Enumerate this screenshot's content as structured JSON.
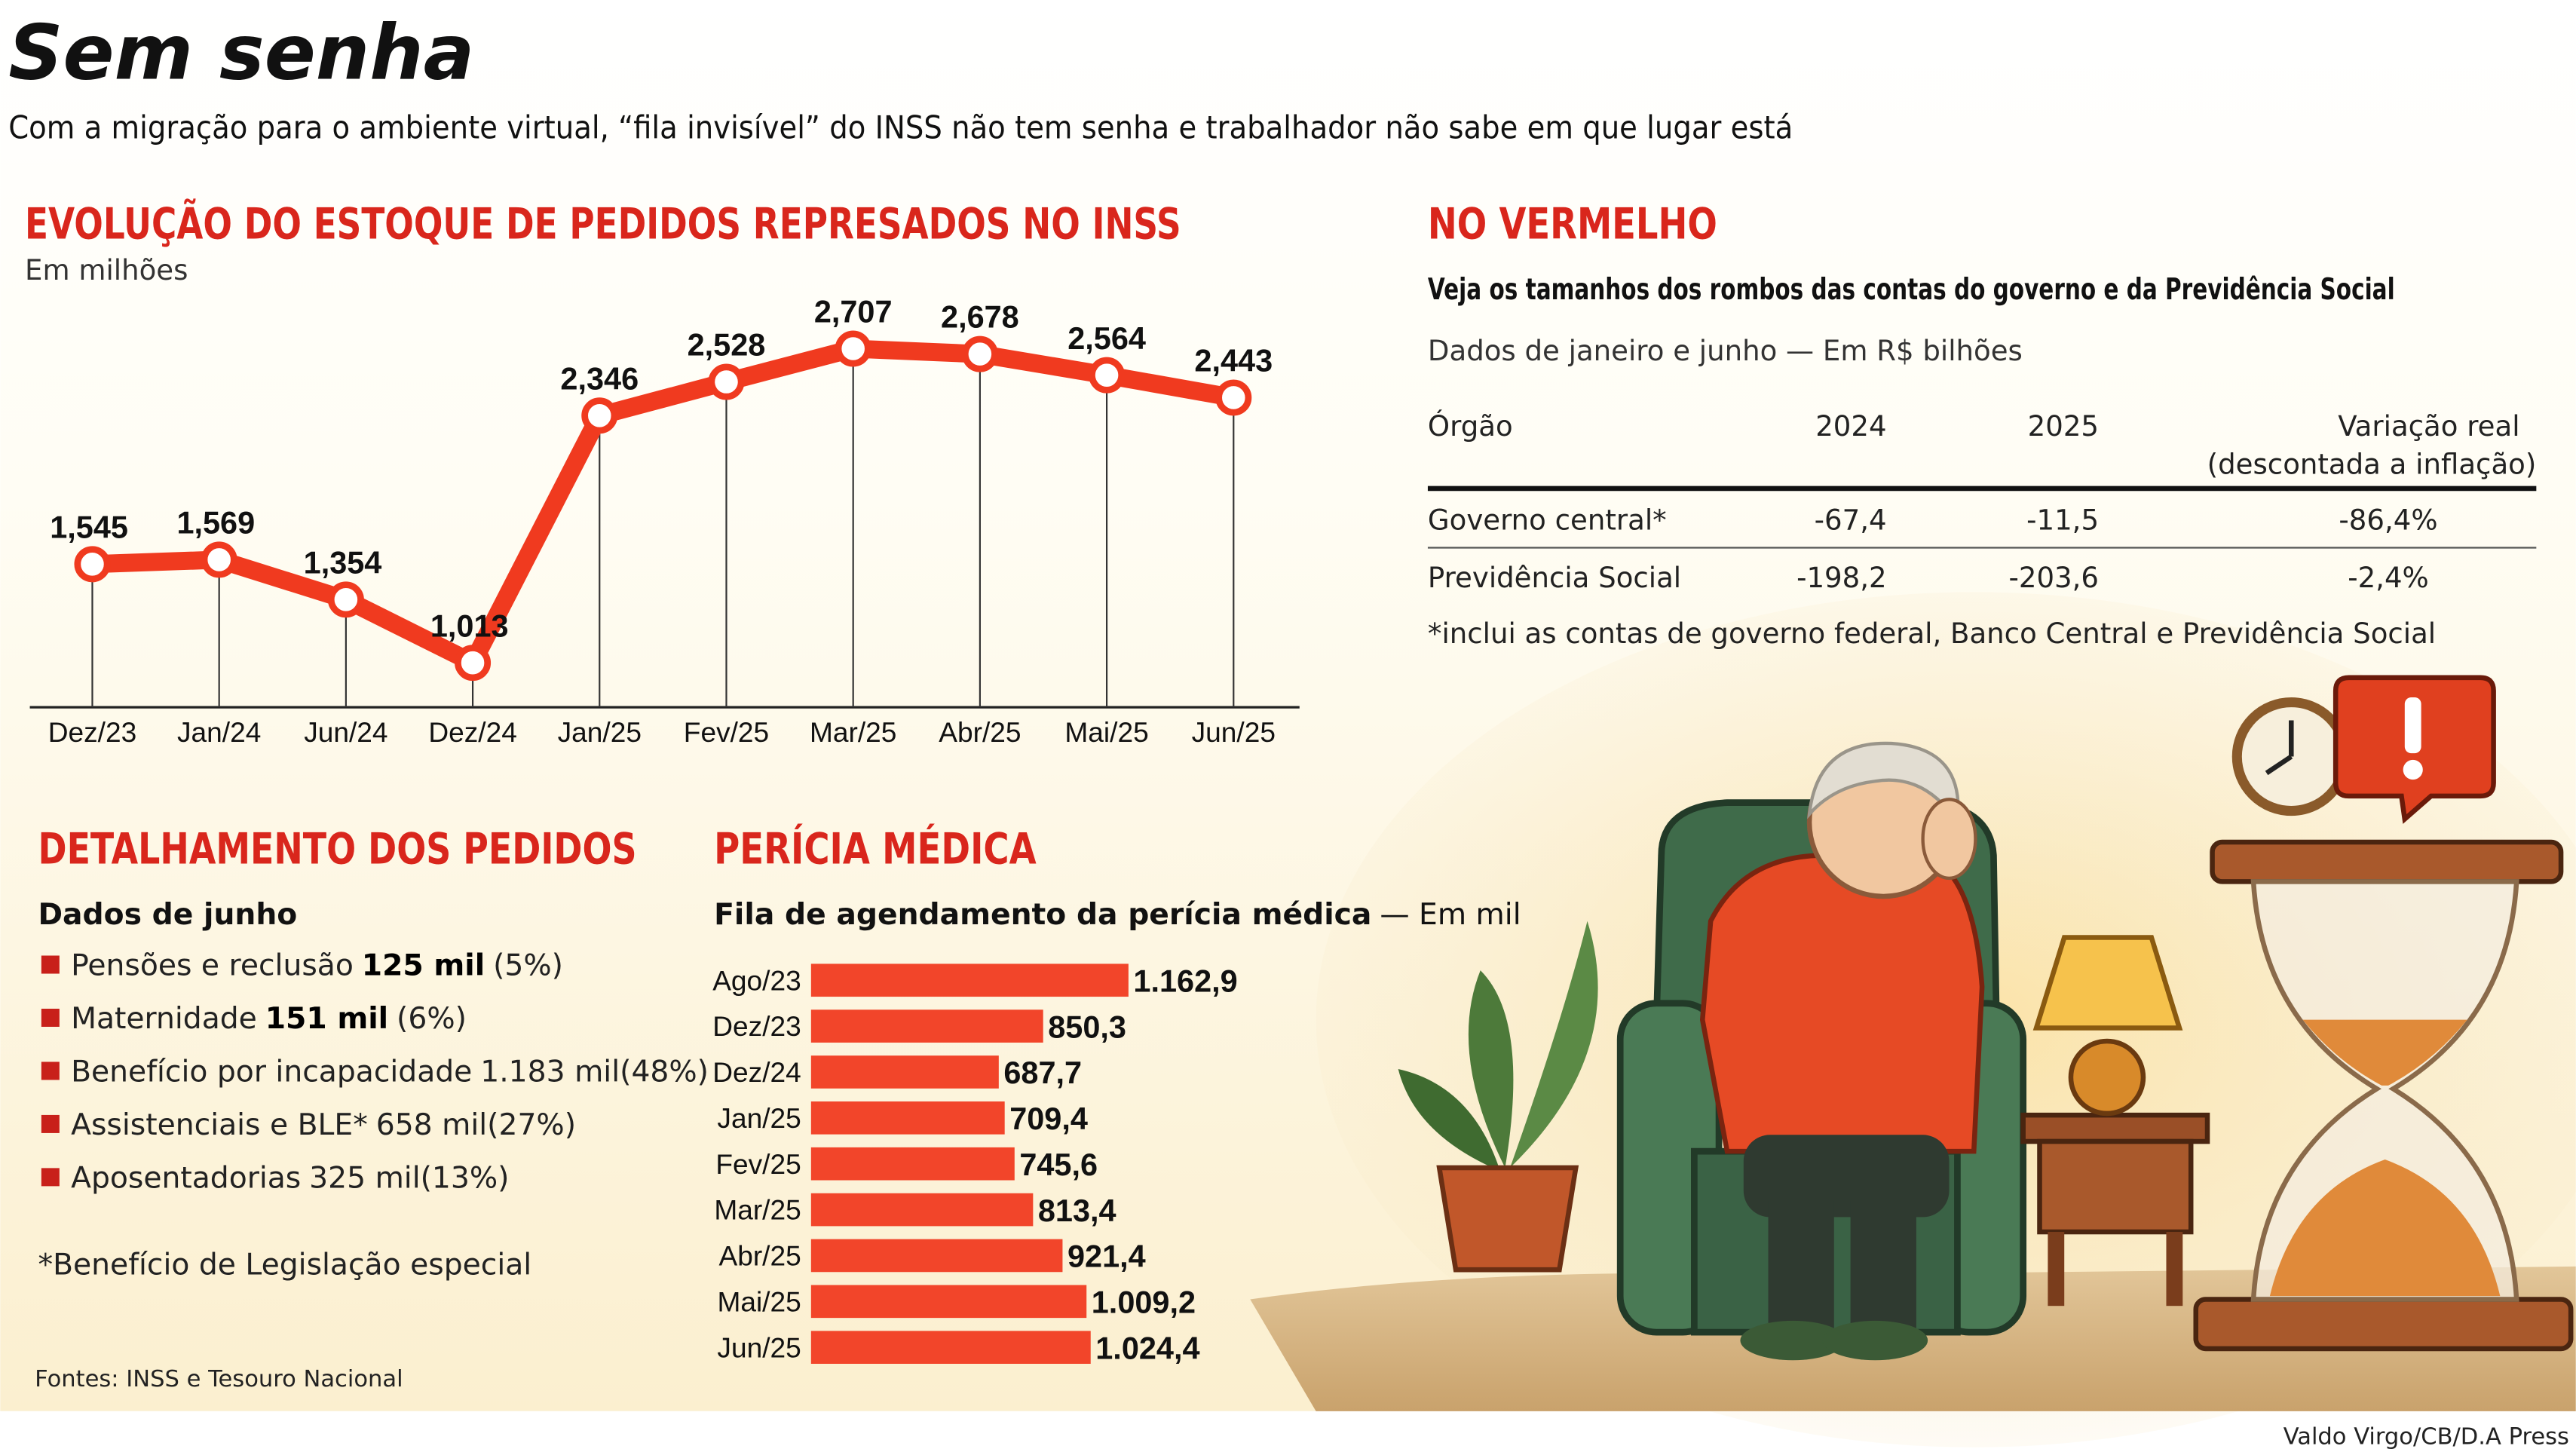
{
  "header": {
    "title": "Sem senha",
    "subtitle": "Com a migração para o ambiente virtual, “fila invisível” do INSS não tem senha e trabalhador não sabe em que lugar está"
  },
  "chart_data": [
    {
      "type": "line",
      "title": "EVOLUÇÃO DO ESTOQUE DE PEDIDOS REPRESADOS NO INSS",
      "subtitle": "Em milhões",
      "categories": [
        "Dez/23",
        "Jan/24",
        "Jun/24",
        "Dez/24",
        "Jan/25",
        "Fev/25",
        "Mar/25",
        "Abr/25",
        "Mai/25",
        "Jun/25"
      ],
      "values": [
        1.545,
        1.569,
        1.354,
        1.013,
        2.346,
        2.528,
        2.707,
        2.678,
        2.564,
        2.443
      ],
      "value_labels": [
        "1,545",
        "1,569",
        "1,354",
        "1,013",
        "2,346",
        "2,528",
        "2,707",
        "2,678",
        "2,564",
        "2,443"
      ],
      "color": "#f03a1f"
    },
    {
      "type": "bar",
      "orientation": "horizontal",
      "title": "PERÍCIA MÉDICA",
      "subtitle": "Fila de agendamento da perícia médica",
      "unit": "— Em mil",
      "categories": [
        "Ago/23",
        "Dez/23",
        "Dez/24",
        "Jan/25",
        "Fev/25",
        "Mar/25",
        "Abr/25",
        "Mai/25",
        "Jun/25"
      ],
      "values": [
        1162.9,
        850.3,
        687.7,
        709.4,
        745.6,
        813.4,
        921.4,
        1009.2,
        1024.4
      ],
      "value_labels": [
        "1.162,9",
        "850,3",
        "687,7",
        "709,4",
        "745,6",
        "813,4",
        "921,4",
        "1.009,2",
        "1.024,4"
      ],
      "color": "#f2452a"
    }
  ],
  "details": {
    "title": "DETALHAMENTO DOS PEDIDOS",
    "subtitle": "Dados de junho",
    "items": [
      {
        "label": "Pensões e reclusão",
        "amount": "125 mil",
        "share": "(5%)",
        "bold": true
      },
      {
        "label": "Maternidade",
        "amount": "151 mil",
        "share": "(6%)",
        "bold": true
      },
      {
        "label": "Benefício por incapacidade",
        "amount": "1.183 mil",
        "share": "(48%)",
        "bold": false
      },
      {
        "label": "Assistenciais e BLE*",
        "amount": "658 mil",
        "share": "(27%)",
        "bold": false
      },
      {
        "label": "Aposentadorias",
        "amount": "325 mil",
        "share": "(13%)",
        "bold": false
      }
    ],
    "note": "*Benefício de Legislação especial"
  },
  "table": {
    "title": "NO VERMELHO",
    "subtitle": "Veja os tamanhos dos rombos das contas do governo e da Previdência Social",
    "caption": "Dados de janeiro e junho — Em R$ bilhões",
    "columns": [
      "Órgão",
      "2024",
      "2025",
      "Variação real"
    ],
    "column_note": "(descontada a inflação)",
    "rows": [
      [
        "Governo central*",
        "-67,4",
        "-11,5",
        "-86,4%"
      ],
      [
        "Previdência Social",
        "-198,2",
        "-203,6",
        "-2,4%"
      ]
    ],
    "note": "*inclui as contas de governo federal, Banco Central e Previdência Social"
  },
  "footer": {
    "source": "Fontes: INSS e Tesouro Nacional",
    "credit": "Valdo Virgo/CB/D.A Press"
  }
}
